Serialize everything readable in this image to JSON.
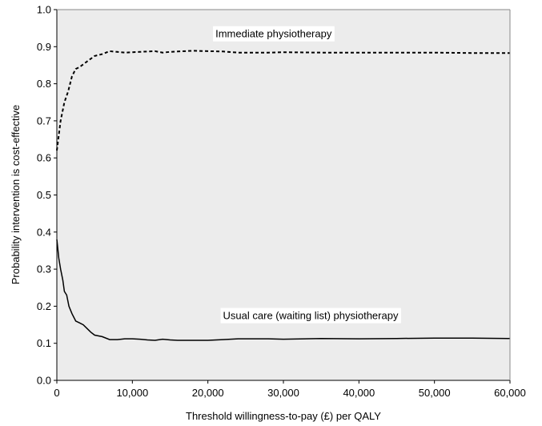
{
  "chart_data": {
    "type": "line",
    "title": "",
    "xlabel": "Threshold  willingness-to-pay  (£) per QALY",
    "ylabel": "Probability  intervention is cost-effective",
    "xlim": [
      0,
      60000
    ],
    "ylim": [
      0,
      1.0
    ],
    "x_ticks": [
      0,
      10000,
      20000,
      30000,
      40000,
      50000,
      60000
    ],
    "x_tick_labels": [
      "0",
      "10,000",
      "20,000",
      "30,000",
      "40,000",
      "50,000",
      "60,000"
    ],
    "y_ticks": [
      0,
      0.1,
      0.2,
      0.3,
      0.4,
      0.5,
      0.6,
      0.7,
      0.8,
      0.9,
      1.0
    ],
    "y_tick_labels": [
      "0.0",
      "0.1",
      "0.2",
      "0.3",
      "0.4",
      "0.5",
      "0.6",
      "0.7",
      "0.8",
      "0.9",
      "1.0"
    ],
    "grid": false,
    "legend": "none",
    "plot_background": "#ececec",
    "series": [
      {
        "name": "Immediate  physiotherapy",
        "style": "dashed",
        "color": "#000000",
        "x": [
          0,
          500,
          1000,
          1500,
          2000,
          2500,
          3000,
          4000,
          5000,
          6000,
          7000,
          8000,
          9000,
          10000,
          11000,
          12000,
          13000,
          14000,
          15000,
          16000,
          18000,
          20000,
          22000,
          24000,
          26000,
          28000,
          30000,
          35000,
          40000,
          45000,
          50000,
          55000,
          60000
        ],
        "y": [
          0.62,
          0.7,
          0.75,
          0.78,
          0.82,
          0.84,
          0.845,
          0.86,
          0.875,
          0.88,
          0.888,
          0.886,
          0.884,
          0.885,
          0.886,
          0.887,
          0.888,
          0.884,
          0.886,
          0.887,
          0.889,
          0.888,
          0.887,
          0.884,
          0.884,
          0.884,
          0.885,
          0.884,
          0.884,
          0.884,
          0.884,
          0.883,
          0.883
        ]
      },
      {
        "name": "Usual care (waiting list) physiotherapy",
        "style": "solid",
        "color": "#000000",
        "x": [
          0,
          250,
          500,
          800,
          1000,
          1300,
          1600,
          2000,
          2500,
          3000,
          3500,
          4000,
          4500,
          5000,
          6000,
          7000,
          8000,
          9000,
          10000,
          11000,
          12000,
          13000,
          14000,
          15000,
          16000,
          18000,
          20000,
          22000,
          24000,
          26000,
          28000,
          30000,
          35000,
          40000,
          45000,
          50000,
          55000,
          60000
        ],
        "y": [
          0.38,
          0.33,
          0.3,
          0.27,
          0.24,
          0.23,
          0.2,
          0.18,
          0.16,
          0.155,
          0.15,
          0.14,
          0.13,
          0.122,
          0.118,
          0.11,
          0.11,
          0.112,
          0.112,
          0.111,
          0.109,
          0.108,
          0.111,
          0.109,
          0.108,
          0.108,
          0.108,
          0.11,
          0.112,
          0.112,
          0.112,
          0.111,
          0.113,
          0.112,
          0.113,
          0.114,
          0.114,
          0.113
        ]
      }
    ],
    "annotations": [
      {
        "text": "Immediate  physiotherapy",
        "x": 21000,
        "y": 0.925
      },
      {
        "text": "Usual care (waiting list) physiotherapy",
        "x": 22000,
        "y": 0.165
      }
    ]
  }
}
